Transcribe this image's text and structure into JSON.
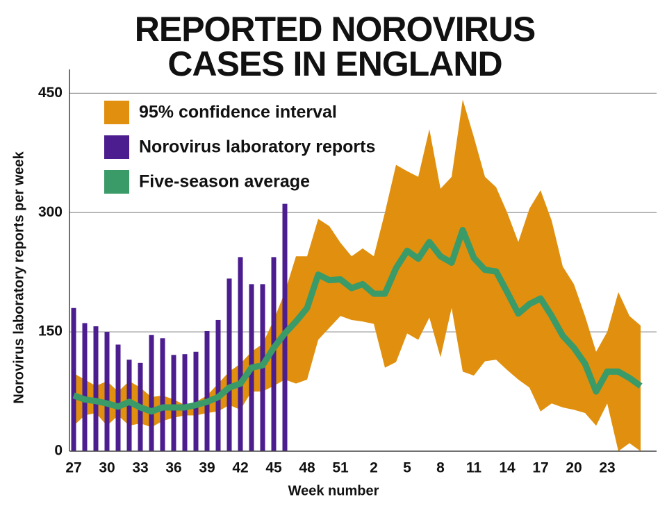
{
  "chart_data": {
    "type": "band-bar-line",
    "title": [
      "REPORTED NOROVIRUS",
      "CASES IN ENGLAND"
    ],
    "x_label": "Week number",
    "y_label": "Norovirus laboratory reports per week",
    "categories": [
      "27",
      null,
      null,
      "30",
      null,
      null,
      "33",
      null,
      null,
      "36",
      null,
      null,
      "39",
      null,
      null,
      "42",
      null,
      null,
      "45",
      null,
      null,
      "48",
      null,
      null,
      "51",
      null,
      null,
      "2",
      null,
      null,
      "5",
      null,
      null,
      "8",
      null,
      null,
      "11",
      null,
      null,
      "14",
      null,
      null,
      "17",
      null,
      null,
      "20",
      null,
      null,
      "23",
      null,
      null,
      null
    ],
    "ylim": [
      0,
      480
    ],
    "yticks": [
      0,
      150,
      300,
      450
    ],
    "grid": true,
    "legend": "upper left",
    "series": [
      {
        "name": "95% confidence interval",
        "color": "#e0900e",
        "type": "band",
        "upper": [
          98,
          90,
          82,
          88,
          75,
          88,
          80,
          68,
          70,
          65,
          58,
          62,
          70,
          85,
          100,
          110,
          125,
          135,
          165,
          200,
          245,
          245,
          292,
          283,
          262,
          245,
          255,
          245,
          300,
          360,
          352,
          345,
          405,
          330,
          345,
          442,
          395,
          345,
          332,
          300,
          263,
          305,
          328,
          290,
          232,
          210,
          170,
          125,
          150,
          200,
          170,
          158
        ],
        "lower": [
          32,
          45,
          48,
          32,
          45,
          32,
          35,
          30,
          38,
          42,
          45,
          45,
          48,
          50,
          58,
          52,
          75,
          75,
          82,
          90,
          85,
          90,
          140,
          155,
          170,
          165,
          163,
          160,
          105,
          112,
          148,
          140,
          168,
          118,
          180,
          100,
          95,
          113,
          115,
          102,
          90,
          80,
          50,
          60,
          55,
          52,
          48,
          32,
          60,
          0,
          10,
          0
        ]
      },
      {
        "name": "Norovirus laboratory reports",
        "color": "#4b1d8f",
        "type": "bar",
        "values": [
          180,
          161,
          157,
          150,
          134,
          115,
          111,
          146,
          142,
          121,
          122,
          125,
          151,
          165,
          217,
          244,
          210,
          210,
          244,
          311,
          null,
          null,
          null,
          null,
          null,
          null,
          null,
          null,
          null,
          null,
          null,
          null,
          null,
          null,
          null,
          null,
          null,
          null,
          null,
          null,
          null,
          null,
          null,
          null,
          null,
          null,
          null,
          null,
          null,
          null,
          null,
          null
        ]
      },
      {
        "name": "Five-season average",
        "color": "#3a9a68",
        "type": "line",
        "values": [
          70,
          65,
          63,
          60,
          56,
          62,
          55,
          50,
          55,
          55,
          55,
          58,
          62,
          68,
          80,
          85,
          105,
          108,
          130,
          148,
          163,
          180,
          222,
          215,
          216,
          205,
          210,
          198,
          198,
          230,
          252,
          242,
          263,
          245,
          237,
          278,
          243,
          228,
          226,
          200,
          173,
          185,
          192,
          170,
          145,
          130,
          110,
          75,
          100,
          100,
          92,
          82
        ]
      }
    ]
  }
}
